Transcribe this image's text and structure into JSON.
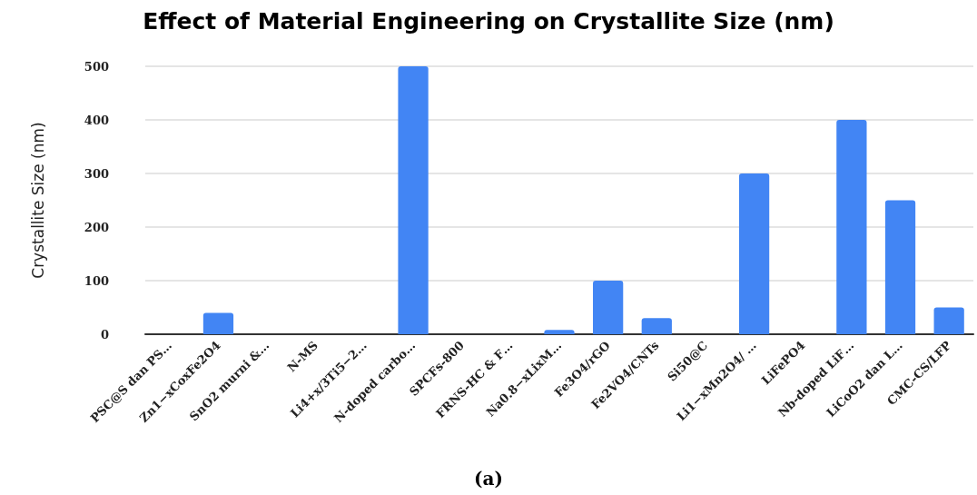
{
  "chart_data": {
    "type": "bar",
    "title": "Effect of Material Engineering on Crystallite Size (nm)",
    "ylabel": "Crystallite Size (nm)",
    "categories": [
      "PSC@S dan PS…",
      "Zn1−xCoxFe2O4",
      "SnO2 murni &…",
      "N-MS",
      "Li4+x/3Ti5−2…",
      "N-doped carbo…",
      "SPCFs-800",
      "FRNS-HC & F…",
      "Na0.8−xLixM…",
      "Fe3O4/rGO",
      "Fe2VO4/CNTs",
      "Si50@C",
      "Li1−xMn2O4/ …",
      "LiFePO4",
      "Nb-doped LiF…",
      "LiCoO2 dan L…",
      "CMC-CS/LFP"
    ],
    "values": [
      null,
      40,
      null,
      null,
      null,
      500,
      null,
      null,
      8,
      100,
      30,
      null,
      300,
      null,
      400,
      250,
      50
    ],
    "color": "#4285f4",
    "ylim": [
      0,
      500
    ],
    "yticks": [
      0,
      100,
      200,
      300,
      400,
      500
    ],
    "grid": "y",
    "annotations": [
      "(a)"
    ]
  }
}
